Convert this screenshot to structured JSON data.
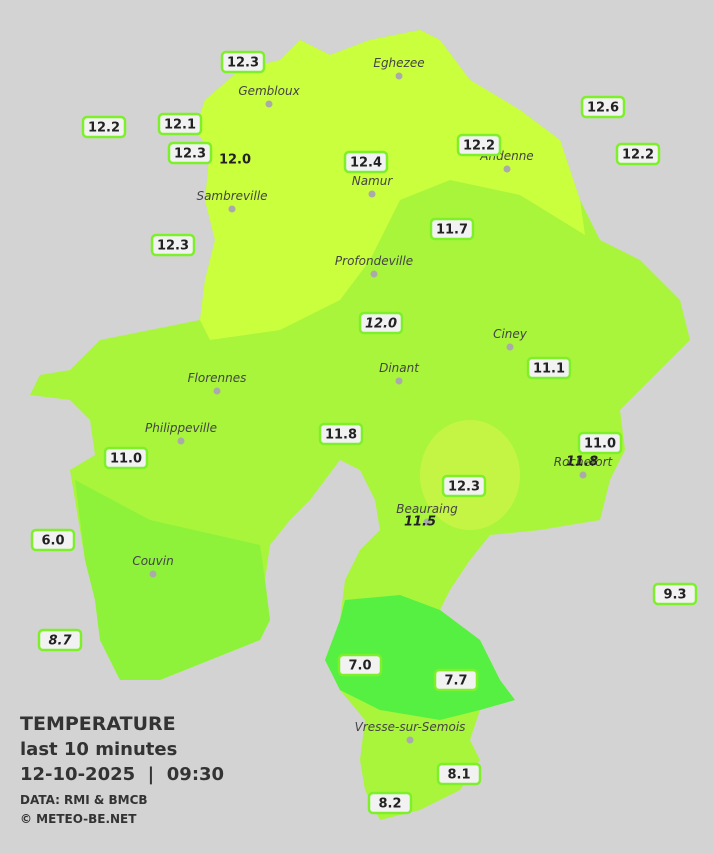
{
  "legend": {
    "title": "TEMPERATURE",
    "period": "last 10 minutes",
    "datetime": "12-10-2025  |  09:30",
    "source": "DATA: RMI & BMCB",
    "copyright": "© METEO-BE.NET"
  },
  "towns": [
    "Eghezee",
    "Gembloux",
    "Andenne",
    "Namur",
    "Sambreville",
    "Profondeville",
    "Ciney",
    "Dinant",
    "Florennes",
    "Philippeville",
    "Beauraing",
    "Rochefort",
    "Couvin",
    "Vresse-sur-Semois"
  ],
  "stations": [
    "12.3",
    "12.2",
    "12.1",
    "12.3",
    "12.0",
    "12.4",
    "12.2",
    "12.6",
    "12.2",
    "12.3",
    "11.7",
    "12.0",
    "11.1",
    "11.8",
    "11.0",
    "11.0",
    "11.8",
    "12.3",
    "11.5",
    "6.0",
    "9.3",
    "8.7",
    "7.0",
    "7.7",
    "8.1",
    "8.2"
  ]
}
